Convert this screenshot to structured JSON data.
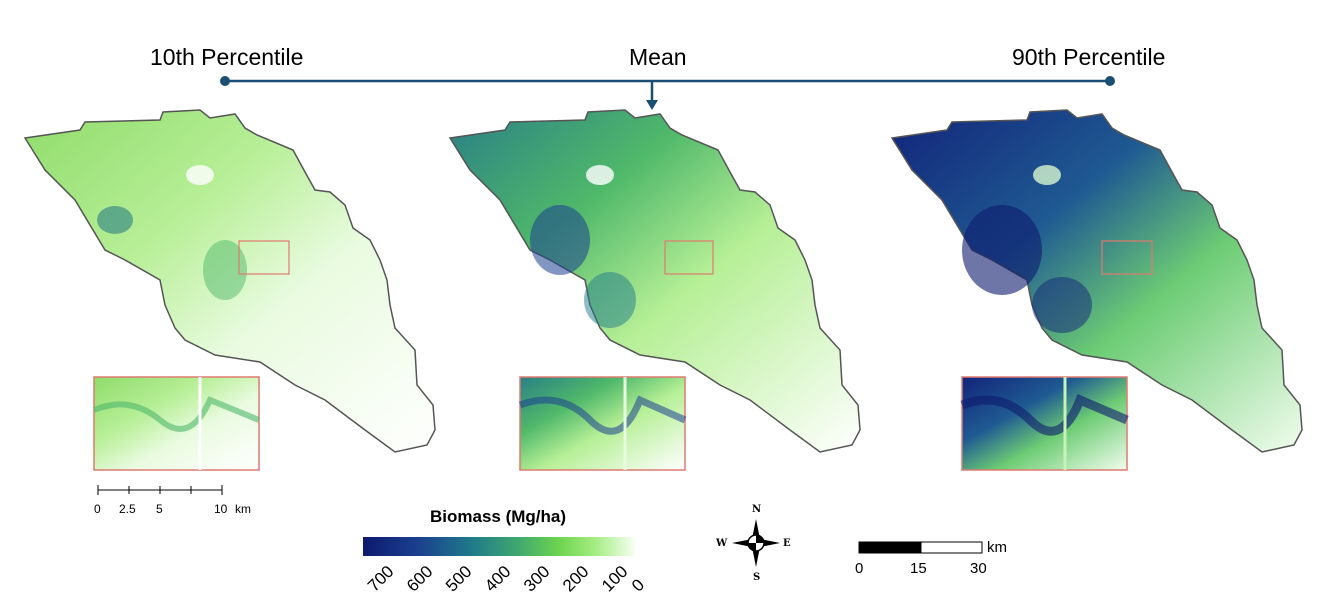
{
  "panels": [
    {
      "title": "10th Percentile"
    },
    {
      "title": "Mean"
    },
    {
      "title": "90th Percentile"
    }
  ],
  "legend": {
    "title": "Biomass (Mg/ha)",
    "ticks": [
      "700",
      "600",
      "500",
      "400",
      "300",
      "200",
      "100",
      "0"
    ],
    "colors": [
      "#0d1a6e",
      "#1b3f8f",
      "#1f7a8a",
      "#3fa86e",
      "#6dd44f",
      "#a8ee86",
      "#e8fbe0",
      "#ffffff"
    ]
  },
  "scale_small": {
    "ticks": [
      "0",
      "2.5",
      "5",
      "10"
    ],
    "unit": "km"
  },
  "scale_large": {
    "ticks": [
      "0",
      "15",
      "30"
    ],
    "unit": "km"
  },
  "compass": {
    "n": "N",
    "s": "S",
    "e": "E",
    "w": "W"
  },
  "colors": {
    "connector": "#1a4f73",
    "outline": "#555555",
    "inset": "#e07a6f"
  }
}
